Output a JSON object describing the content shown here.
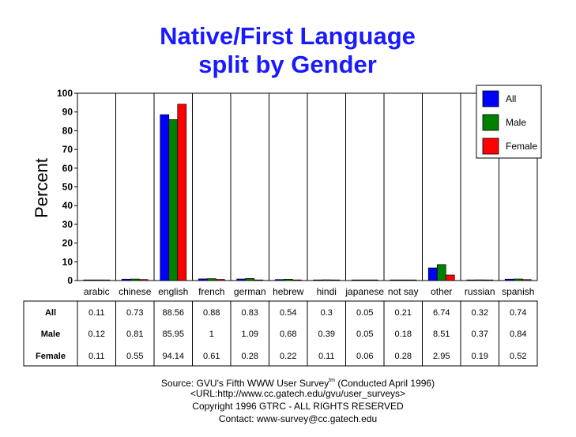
{
  "chart_data": {
    "type": "bar",
    "title_lines": [
      "Native/First Language",
      "split by Gender"
    ],
    "ylabel": "Percent",
    "xlabel": "",
    "ylim": [
      0,
      100
    ],
    "yticks": [
      0,
      10,
      20,
      30,
      40,
      50,
      60,
      70,
      80,
      90,
      100
    ],
    "grid": false,
    "legend_placement": "top-right",
    "categories": [
      "arabic",
      "chinese",
      "english",
      "french",
      "german",
      "hebrew",
      "hindi",
      "japanese",
      "not say",
      "other",
      "russian",
      "spanish"
    ],
    "series": [
      {
        "name": "All",
        "color": "#0000ff",
        "values": [
          0.11,
          0.73,
          88.56,
          0.88,
          0.83,
          0.54,
          0.3,
          0.05,
          0.21,
          6.74,
          0.32,
          0.74
        ]
      },
      {
        "name": "Male",
        "color": "#008000",
        "values": [
          0.12,
          0.81,
          85.95,
          1,
          1.09,
          0.68,
          0.39,
          0.05,
          0.18,
          8.51,
          0.37,
          0.84
        ]
      },
      {
        "name": "Female",
        "color": "#ff0000",
        "values": [
          0.11,
          0.55,
          94.14,
          0.61,
          0.28,
          0.22,
          0.11,
          0.06,
          0.28,
          2.95,
          0.19,
          0.52
        ]
      }
    ]
  },
  "footer": {
    "source_prefix": "Source: GVU's Fifth WWW User Survey",
    "source_sup": "tm",
    "source_suffix": " (Conducted April 1996)",
    "url": "<URL:http://www.cc.gatech.edu/gvu/user_surveys>",
    "copyright": "Copyright 1996 GTRC -  ALL RIGHTS RESERVED",
    "contact": "Contact: www-survey@cc.gatech.edu"
  }
}
